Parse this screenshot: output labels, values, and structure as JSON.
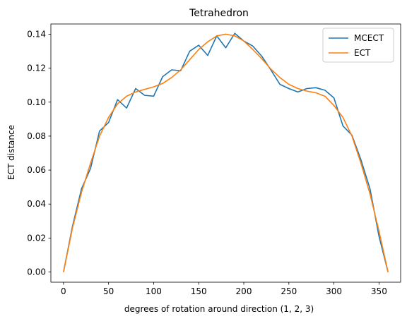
{
  "chart_data": {
    "type": "line",
    "title": "Tetrahedron",
    "xlabel": "degrees of rotation around direction (1, 2, 3)",
    "ylabel": "ECT distance",
    "xlim": [
      -14,
      374
    ],
    "ylim": [
      -0.006,
      0.146
    ],
    "xticks": [
      0,
      50,
      100,
      150,
      200,
      250,
      300,
      350
    ],
    "yticks": [
      0.0,
      0.02,
      0.04,
      0.06,
      0.08,
      0.1,
      0.12,
      0.14
    ],
    "ytick_labels": [
      "0.00",
      "0.02",
      "0.04",
      "0.06",
      "0.08",
      "0.10",
      "0.12",
      "0.14"
    ],
    "grid": false,
    "legend_position": "top-right",
    "x": [
      0,
      10,
      20,
      30,
      40,
      50,
      60,
      70,
      80,
      90,
      100,
      110,
      120,
      130,
      140,
      150,
      160,
      170,
      180,
      190,
      200,
      210,
      220,
      230,
      240,
      250,
      260,
      270,
      280,
      290,
      300,
      310,
      320,
      330,
      340,
      350,
      360
    ],
    "series": [
      {
        "name": "MCECT",
        "color": "#1f77b4",
        "values": [
          0.0,
          0.027,
          0.049,
          0.061,
          0.083,
          0.088,
          0.1015,
          0.0965,
          0.108,
          0.104,
          0.1035,
          0.115,
          0.119,
          0.1185,
          0.13,
          0.1335,
          0.1275,
          0.139,
          0.132,
          0.1405,
          0.136,
          0.133,
          0.127,
          0.119,
          0.1105,
          0.108,
          0.106,
          0.108,
          0.1085,
          0.107,
          0.1025,
          0.086,
          0.0805,
          0.066,
          0.049,
          0.021,
          0.0
        ]
      },
      {
        "name": "ECT",
        "color": "#ff7f0e",
        "values": [
          0.0,
          0.026,
          0.047,
          0.064,
          0.08,
          0.091,
          0.099,
          0.1035,
          0.106,
          0.1075,
          0.109,
          0.111,
          0.1145,
          0.119,
          0.125,
          0.131,
          0.1355,
          0.139,
          0.14,
          0.139,
          0.136,
          0.131,
          0.1255,
          0.1195,
          0.1145,
          0.1105,
          0.108,
          0.1065,
          0.1055,
          0.1035,
          0.098,
          0.091,
          0.08,
          0.064,
          0.046,
          0.024,
          0.0
        ]
      }
    ]
  }
}
